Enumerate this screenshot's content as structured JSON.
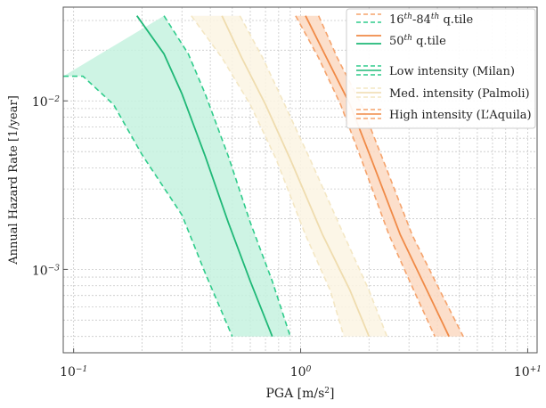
{
  "chart_data": {
    "type": "area",
    "xscale": "log",
    "yscale": "log",
    "xlim": [
      0.09,
      11
    ],
    "ylim": [
      0.00032,
      0.036
    ],
    "xlabel": "PGA [m/s",
    "xlabel_sup": "2",
    "xlabel_tail": "]",
    "ylabel": "Annual Hazard Rate  [1/year]",
    "x_ticks": [
      {
        "value": 0.1,
        "label": "10",
        "sup": "−1"
      },
      {
        "value": 1,
        "label": "10",
        "sup": "0"
      },
      {
        "value": 10,
        "label": "10",
        "sup": "+1"
      }
    ],
    "y_ticks": [
      {
        "value": 0.001,
        "label": "10",
        "sup": "−3"
      },
      {
        "value": 0.01,
        "label": "10",
        "sup": "−2"
      }
    ],
    "grid": true,
    "legend_position": "top-right",
    "legend": [
      {
        "kind": "q1684",
        "text": "16",
        "sup1": "th",
        "mid": "-84",
        "sup2": "th",
        "tail": " q.tile"
      },
      {
        "kind": "median",
        "text": "50",
        "sup1": "th",
        "mid": " q.tile",
        "sup2": "",
        "tail": ""
      },
      {
        "kind": "gap",
        "text": "",
        "sup1": "",
        "mid": "",
        "sup2": "",
        "tail": ""
      },
      {
        "kind": "series",
        "series": 0,
        "text": "Low intensity (Milan)",
        "sup1": "",
        "mid": "",
        "sup2": "",
        "tail": ""
      },
      {
        "kind": "series",
        "series": 1,
        "text": "Med. intensity (Palmoli)",
        "sup1": "",
        "mid": "",
        "sup2": "",
        "tail": ""
      },
      {
        "kind": "series",
        "series": 2,
        "text": "High intensity (L’Aquila)",
        "sup1": "",
        "mid": "",
        "sup2": "",
        "tail": ""
      }
    ],
    "series": [
      {
        "name": "Low intensity (Milan)",
        "color": "#2fcc8b",
        "fill": "#c5f2df",
        "line_color": "#1fb877",
        "median": [
          [
            0.19,
            0.032
          ],
          [
            0.25,
            0.019
          ],
          [
            0.3,
            0.011
          ],
          [
            0.38,
            0.0047
          ],
          [
            0.48,
            0.0019
          ],
          [
            0.6,
            0.00085
          ],
          [
            0.75,
            0.0004
          ]
        ],
        "q16": [
          [
            0.09,
            0.014
          ],
          [
            0.11,
            0.014
          ],
          [
            0.15,
            0.0095
          ],
          [
            0.2,
            0.0048
          ],
          [
            0.3,
            0.0021
          ],
          [
            0.38,
            0.00095
          ],
          [
            0.5,
            0.0004
          ]
        ],
        "q84": [
          [
            0.25,
            0.032
          ],
          [
            0.32,
            0.019
          ],
          [
            0.38,
            0.011
          ],
          [
            0.48,
            0.0047
          ],
          [
            0.6,
            0.0019
          ],
          [
            0.75,
            0.00085
          ],
          [
            0.9,
            0.0004
          ]
        ]
      },
      {
        "name": "Med. intensity (Palmoli)",
        "color": "#f4e7c4",
        "fill": "#fbf4e3",
        "line_color": "#efdcae",
        "median": [
          [
            0.45,
            0.032
          ],
          [
            0.55,
            0.018
          ],
          [
            0.7,
            0.0095
          ],
          [
            0.9,
            0.0045
          ],
          [
            1.25,
            0.0016
          ],
          [
            1.65,
            0.00075
          ],
          [
            2.0,
            0.0004
          ]
        ],
        "q16": [
          [
            0.33,
            0.032
          ],
          [
            0.45,
            0.018
          ],
          [
            0.6,
            0.0095
          ],
          [
            0.78,
            0.0045
          ],
          [
            1.05,
            0.0016
          ],
          [
            1.35,
            0.00075
          ],
          [
            1.55,
            0.0004
          ]
        ],
        "q84": [
          [
            0.54,
            0.032
          ],
          [
            0.68,
            0.018
          ],
          [
            0.85,
            0.0095
          ],
          [
            1.1,
            0.0045
          ],
          [
            1.55,
            0.0016
          ],
          [
            2.0,
            0.00075
          ],
          [
            2.4,
            0.0004
          ]
        ]
      },
      {
        "name": "High intensity (L’Aquila)",
        "color": "#f5a36c",
        "fill": "#fbd9c2",
        "line_color": "#f08a47",
        "median": [
          [
            1.05,
            0.032
          ],
          [
            1.3,
            0.018
          ],
          [
            1.65,
            0.0095
          ],
          [
            2.05,
            0.0045
          ],
          [
            2.75,
            0.0016
          ],
          [
            3.6,
            0.00075
          ],
          [
            4.5,
            0.0004
          ]
        ],
        "q16": [
          [
            0.95,
            0.032
          ],
          [
            1.2,
            0.018
          ],
          [
            1.5,
            0.0095
          ],
          [
            1.85,
            0.0045
          ],
          [
            2.45,
            0.0016
          ],
          [
            3.15,
            0.00075
          ],
          [
            3.9,
            0.0004
          ]
        ],
        "q84": [
          [
            1.2,
            0.032
          ],
          [
            1.45,
            0.018
          ],
          [
            1.85,
            0.0095
          ],
          [
            2.3,
            0.0045
          ],
          [
            3.1,
            0.0016
          ],
          [
            4.1,
            0.00075
          ],
          [
            5.2,
            0.0004
          ]
        ]
      }
    ]
  }
}
